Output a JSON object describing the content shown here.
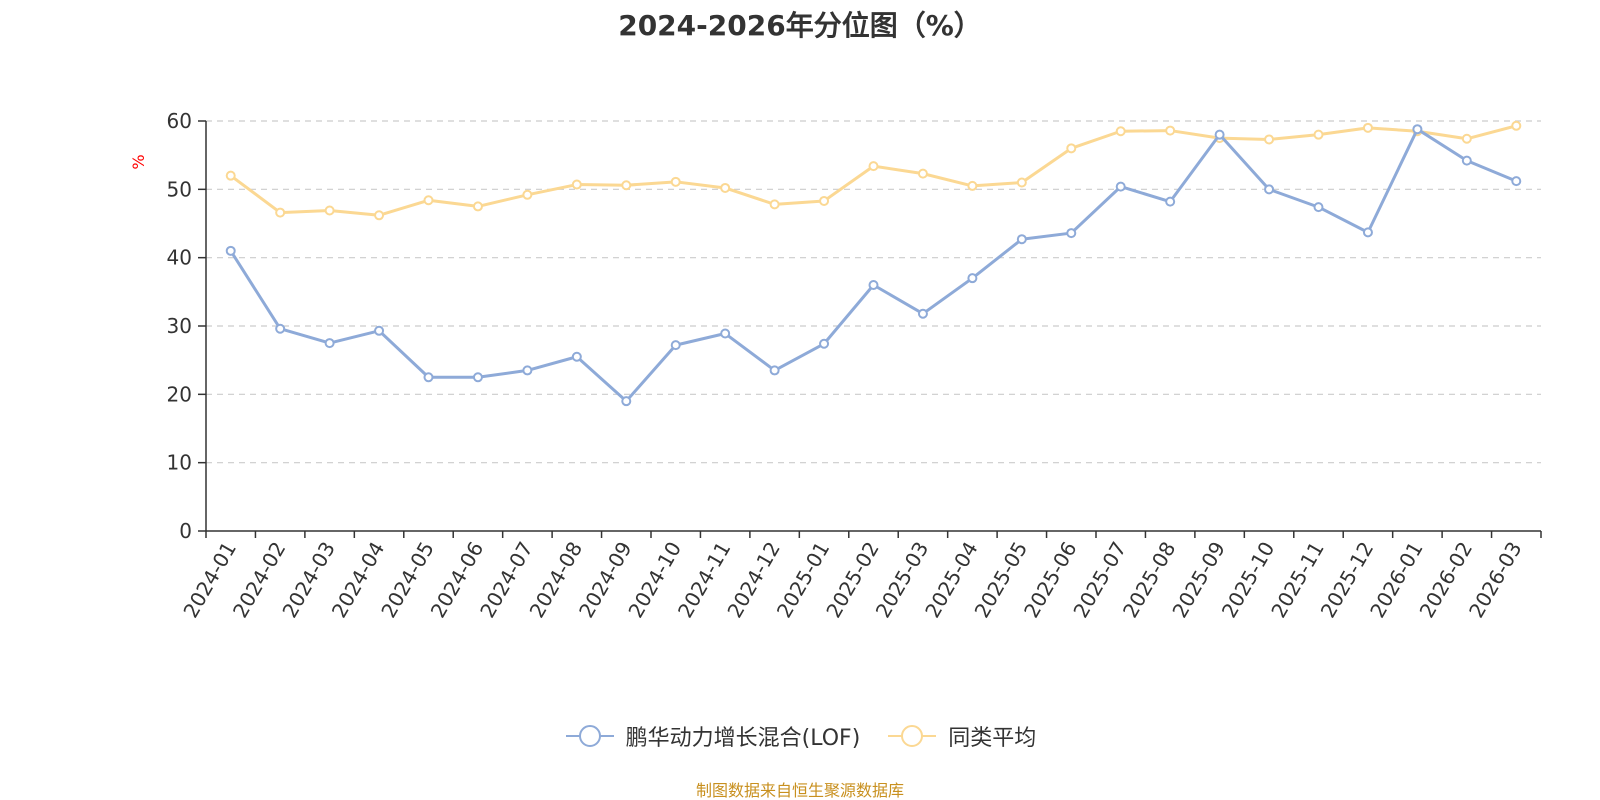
{
  "chart_data": {
    "type": "line",
    "title": "2024-2026年分位图（%）",
    "ylabel": "%",
    "ylim": [
      0,
      60
    ],
    "yticks": [
      0,
      10,
      20,
      30,
      40,
      50,
      60
    ],
    "grid": true,
    "legend_position": "bottom",
    "categories": [
      "2024-01",
      "2024-02",
      "2024-03",
      "2024-04",
      "2024-05",
      "2024-06",
      "2024-07",
      "2024-08",
      "2024-09",
      "2024-10",
      "2024-11",
      "2024-12",
      "2025-01",
      "2025-02",
      "2025-03",
      "2025-04",
      "2025-05",
      "2025-06",
      "2025-07",
      "2025-08",
      "2025-09",
      "2025-10",
      "2025-11",
      "2025-12",
      "2026-01",
      "2026-02",
      "2026-03"
    ],
    "series": [
      {
        "name": "鹏华动力增长混合(LOF)",
        "color": "#8eaad8",
        "values": [
          41.0,
          29.6,
          27.5,
          29.3,
          22.5,
          22.5,
          23.5,
          25.5,
          19.0,
          27.2,
          28.9,
          23.5,
          27.4,
          36.0,
          31.8,
          37.0,
          42.7,
          43.6,
          50.4,
          48.2,
          58.0,
          50.0,
          47.4,
          43.7,
          58.8,
          54.2,
          51.2
        ]
      },
      {
        "name": "同类平均",
        "color": "#fbd893",
        "values": [
          52.0,
          46.6,
          46.9,
          46.2,
          48.4,
          47.5,
          49.2,
          50.7,
          50.6,
          51.1,
          50.2,
          47.8,
          48.3,
          53.4,
          52.3,
          50.5,
          51.0,
          56.0,
          58.5,
          58.6,
          57.5,
          57.3,
          58.0,
          59.0,
          58.5,
          57.4,
          59.3
        ]
      }
    ]
  },
  "source_text": "制图数据来自恒生聚源数据库"
}
